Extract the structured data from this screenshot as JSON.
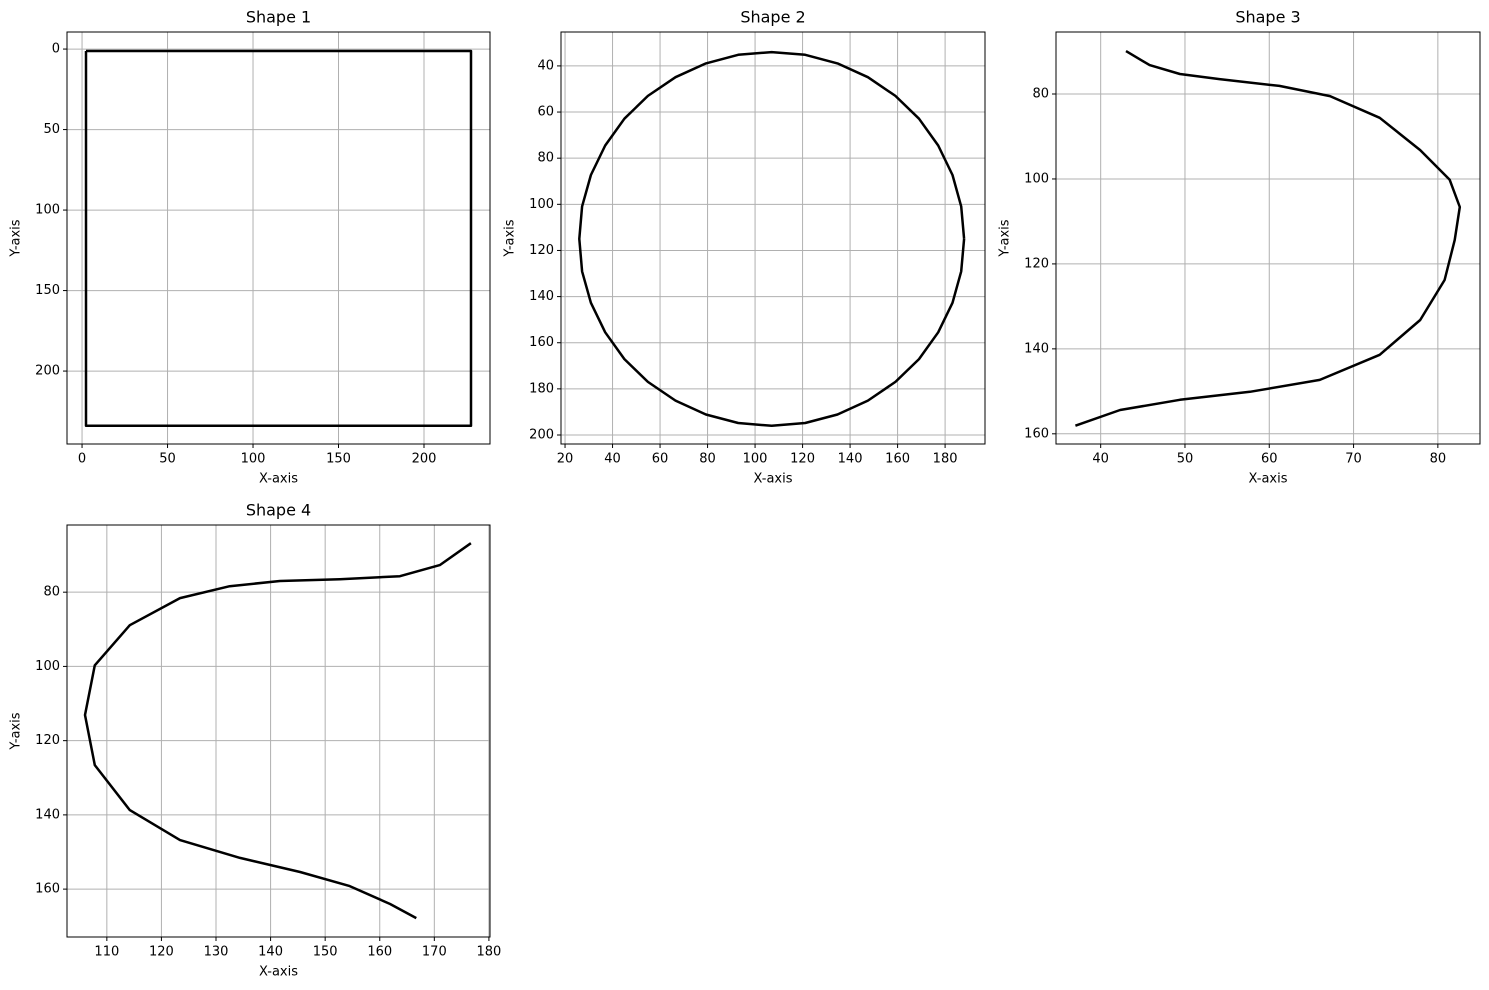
{
  "chart_data": [
    {
      "type": "line",
      "title": "Shape 1",
      "x_label": "X-axis",
      "y_label": "Y-axis",
      "grid": true,
      "xlim": [
        -8.8,
        238.6
      ],
      "ylim": [
        245.3,
        -10.6
      ],
      "xticks": [
        0,
        50,
        100,
        150,
        200
      ],
      "yticks": [
        0,
        50,
        100,
        150,
        200
      ],
      "series": [
        {
          "color": "#000000",
          "x": [
            2.3,
            227.5,
            227.5,
            2.3,
            2.3
          ],
          "values": [
            1.2,
            1.2,
            234,
            234,
            1.2
          ]
        }
      ]
    },
    {
      "type": "line",
      "title": "Shape 2",
      "x_label": "X-axis",
      "y_label": "Y-axis",
      "grid": true,
      "xlim": [
        18.3,
        196.8
      ],
      "ylim": [
        203.9,
        25.3
      ],
      "xticks": [
        20,
        40,
        60,
        80,
        100,
        120,
        140,
        160,
        180
      ],
      "yticks": [
        40,
        60,
        80,
        100,
        120,
        140,
        160,
        180,
        200
      ],
      "series": [
        {
          "color": "#000000",
          "x": [
            188,
            186.8,
            183.1,
            177.1,
            169.0,
            159.1,
            147.5,
            134.7,
            121.1,
            107,
            92.9,
            79.3,
            66.5,
            54.9,
            45.0,
            36.9,
            30.9,
            27.2,
            26,
            27.2,
            30.9,
            36.9,
            45.0,
            54.9,
            66.5,
            79.3,
            92.9,
            107,
            121.1,
            134.7,
            147.5,
            159.1,
            169.0,
            177.1,
            183.1,
            186.8,
            188
          ],
          "values": [
            115,
            129.1,
            142.7,
            155.5,
            167.1,
            177.0,
            185.1,
            191.1,
            194.8,
            196,
            194.8,
            191.1,
            185.1,
            177.0,
            167.1,
            155.5,
            142.7,
            129.1,
            115,
            100.9,
            87.3,
            74.5,
            62.9,
            53.0,
            44.9,
            38.9,
            35.2,
            34,
            35.2,
            38.9,
            44.9,
            53.0,
            62.9,
            74.5,
            87.3,
            100.9,
            115
          ]
        }
      ]
    },
    {
      "type": "line",
      "title": "Shape 3",
      "x_label": "X-axis",
      "y_label": "Y-axis",
      "grid": true,
      "xlim": [
        34.7,
        85.0
      ],
      "ylim": [
        162.4,
        65.4
      ],
      "xticks": [
        40,
        50,
        60,
        70,
        80
      ],
      "yticks": [
        80,
        100,
        120,
        140,
        160
      ],
      "series": [
        {
          "color": "#000000",
          "x": [
            43.0,
            45.8,
            49.4,
            54.1,
            61.2,
            67.2,
            73.1,
            77.9,
            81.4,
            82.6,
            82.0,
            80.8,
            77.9,
            73.1,
            66.0,
            57.7,
            49.4,
            42.3,
            37.0
          ],
          "values": [
            69.9,
            73.2,
            75.3,
            76.5,
            78.1,
            80.5,
            85.6,
            93.2,
            100.2,
            106.6,
            114.4,
            123.8,
            133.2,
            141.4,
            147.3,
            150.1,
            152.0,
            154.4,
            158.1
          ]
        }
      ]
    },
    {
      "type": "line",
      "title": "Shape 4",
      "x_label": "X-axis",
      "y_label": "Y-axis",
      "grid": true,
      "xlim": [
        102.7,
        180.2
      ],
      "ylim": [
        172.9,
        61.9
      ],
      "xticks": [
        110,
        120,
        130,
        140,
        150,
        160,
        170,
        180
      ],
      "yticks": [
        80,
        100,
        120,
        140,
        160
      ],
      "series": [
        {
          "color": "#000000",
          "x": [
            176.7,
            171.0,
            163.7,
            152.7,
            141.7,
            132.5,
            123.4,
            114.2,
            107.8,
            106.0,
            107.8,
            114.2,
            123.4,
            134.4,
            145.4,
            154.5,
            161.9,
            166.7
          ],
          "values": [
            66.8,
            72.7,
            75.7,
            76.5,
            77.0,
            78.4,
            81.6,
            88.9,
            99.7,
            113.1,
            126.6,
            138.7,
            146.8,
            151.6,
            155.4,
            159.2,
            164.0,
            167.8
          ]
        }
      ]
    }
  ]
}
